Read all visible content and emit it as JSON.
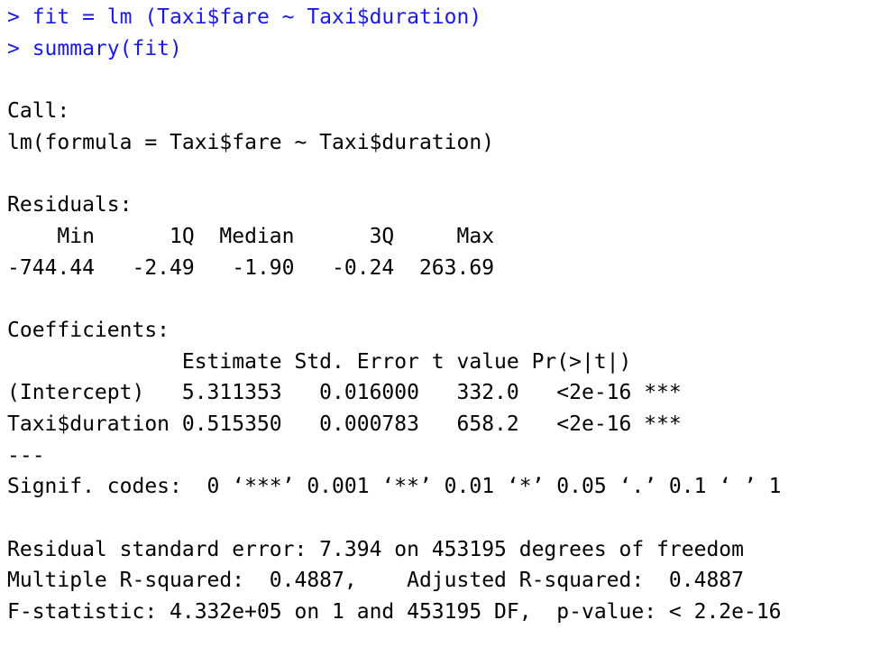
{
  "console": {
    "commands": [
      "> fit = lm (Taxi$fare ~ Taxi$duration)",
      "> summary(fit)"
    ],
    "call": {
      "header": "Call:",
      "formula": "lm(formula = Taxi$fare ~ Taxi$duration)"
    },
    "residuals": {
      "header": "Residuals:",
      "columns": "    Min      1Q  Median      3Q     Max ",
      "values": "-744.44   -2.49   -1.90   -0.24  263.69 "
    },
    "coefficients": {
      "header": "Coefficients:",
      "columns": "              Estimate Std. Error t value Pr(>|t|)    ",
      "rows": [
        "(Intercept)   5.311353   0.016000   332.0   <2e-16 ***",
        "Taxi$duration 0.515350   0.000783   658.2   <2e-16 ***"
      ],
      "separator": "---",
      "signif_codes": "Signif. codes:  0 ‘***’ 0.001 ‘**’ 0.01 ‘*’ 0.05 ‘.’ 0.1 ‘ ’ 1"
    },
    "fit_stats": [
      "Residual standard error: 7.394 on 453195 degrees of freedom",
      "Multiple R-squared:  0.4887,    Adjusted R-squared:  0.4887 ",
      "F-statistic: 4.332e+05 on 1 and 453195 DF,  p-value: < 2.2e-16"
    ]
  }
}
